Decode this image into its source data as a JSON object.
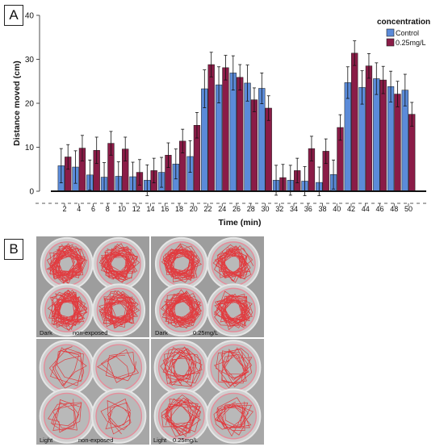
{
  "panel_a": {
    "label": "A"
  },
  "panel_b": {
    "label": "B",
    "captions": {
      "dark_left": "Dark",
      "dark_left_group": "non-exposed",
      "dark_right": "Dark",
      "dark_right_group": "0.25mg/L",
      "light_left": "Light",
      "light_left_group": "non-exposed",
      "light_right": "Light",
      "light_right_group": "0.25mg/L"
    },
    "colors": {
      "track": "#e8262a",
      "well_ring": "#e58c9a",
      "background": "#a7a7a7"
    }
  },
  "chart_data": {
    "type": "bar",
    "xlabel": "Time (min)",
    "ylabel": "Distance moved (cm)",
    "ylim": [
      0,
      40
    ],
    "yticks": [
      0,
      10,
      20,
      30,
      40
    ],
    "categories": [
      "2",
      "4",
      "6",
      "8",
      "10",
      "12",
      "14",
      "16",
      "18",
      "20",
      "22",
      "24",
      "26",
      "28",
      "30",
      "32",
      "34",
      "36",
      "38",
      "40",
      "42",
      "44",
      "46",
      "48",
      "50"
    ],
    "grid": false,
    "legend_position": "top-right",
    "legend_title": "concentration",
    "series": [
      {
        "name": "Control",
        "color": "#5b8bd9",
        "values": [
          5.8,
          5.5,
          3.7,
          3.2,
          3.4,
          3.3,
          2.5,
          4.3,
          6.2,
          7.9,
          23.3,
          24.2,
          26.9,
          24.6,
          23.4,
          2.5,
          2.5,
          2.3,
          2.0,
          3.8,
          24.7,
          23.6,
          25.6,
          23.8,
          23.0
        ],
        "errors": [
          3.9,
          3.7,
          3.4,
          3.3,
          3.3,
          3.3,
          3.5,
          3.4,
          3.4,
          3.6,
          4.3,
          4.1,
          3.9,
          4.1,
          3.5,
          3.4,
          3.4,
          3.3,
          3.5,
          3.3,
          3.6,
          3.8,
          3.6,
          3.5,
          3.6
        ]
      },
      {
        "name": "0.25mg/L",
        "color": "#8a1c47",
        "values": [
          7.8,
          9.8,
          9.3,
          10.9,
          9.6,
          4.3,
          4.7,
          8.2,
          11.4,
          15.0,
          28.8,
          28.1,
          25.9,
          20.8,
          18.9,
          3.1,
          4.7,
          9.7,
          9.1,
          14.5,
          31.4,
          28.5,
          25.3,
          22.1,
          17.5
        ],
        "errors": [
          2.8,
          2.9,
          3.0,
          2.7,
          2.7,
          2.9,
          2.8,
          2.8,
          2.7,
          2.9,
          2.8,
          2.8,
          2.9,
          2.7,
          2.8,
          3.0,
          2.8,
          2.8,
          2.8,
          2.9,
          2.8,
          2.8,
          3.1,
          2.9,
          2.7
        ]
      }
    ]
  }
}
